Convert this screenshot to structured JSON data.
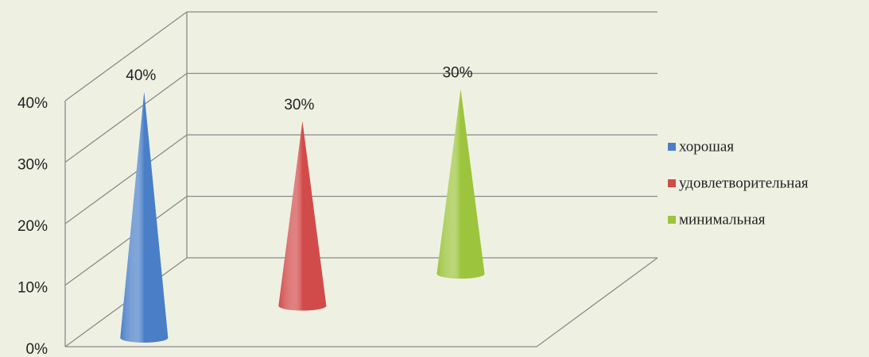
{
  "chart_data": {
    "type": "cone3d",
    "categories": [
      null
    ],
    "series": [
      {
        "name": "хорошая",
        "color": "#4a7fc8",
        "values": [
          40
        ],
        "value_labels": [
          "40%"
        ]
      },
      {
        "name": "удовлетворительная",
        "color": "#d24b4b",
        "values": [
          30
        ],
        "value_labels": [
          "30%"
        ]
      },
      {
        "name": "минимальная",
        "color": "#9cc43c",
        "values": [
          30
        ],
        "value_labels": [
          "30%"
        ]
      }
    ],
    "ylim": [
      0,
      40
    ],
    "yticks": [
      {
        "value": 0,
        "label": "0%"
      },
      {
        "value": 10,
        "label": "10%"
      },
      {
        "value": 20,
        "label": "20%"
      },
      {
        "value": 30,
        "label": "30%"
      },
      {
        "value": 40,
        "label": "40%"
      }
    ],
    "grid": true,
    "legend": "right"
  }
}
